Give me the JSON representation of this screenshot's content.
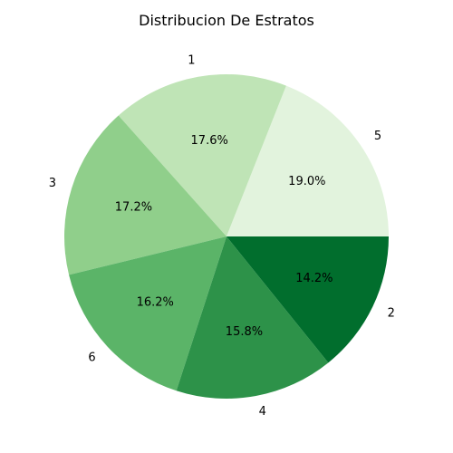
{
  "chart_data": {
    "type": "pie",
    "title": "Distribucion De Estratos",
    "slices": [
      {
        "label": "5",
        "value": 19.0,
        "pct_text": "19.0%",
        "color": "#e2f3dd"
      },
      {
        "label": "1",
        "value": 17.6,
        "pct_text": "17.6%",
        "color": "#bfe4b6"
      },
      {
        "label": "3",
        "value": 17.2,
        "pct_text": "17.2%",
        "color": "#90cf8b"
      },
      {
        "label": "6",
        "value": 16.2,
        "pct_text": "16.2%",
        "color": "#5bb468"
      },
      {
        "label": "4",
        "value": 15.8,
        "pct_text": "15.8%",
        "color": "#2d9249"
      },
      {
        "label": "2",
        "value": 14.2,
        "pct_text": "14.2%",
        "color": "#016e2d"
      }
    ],
    "start_angle_deg": 0,
    "direction": "counterclockwise"
  }
}
